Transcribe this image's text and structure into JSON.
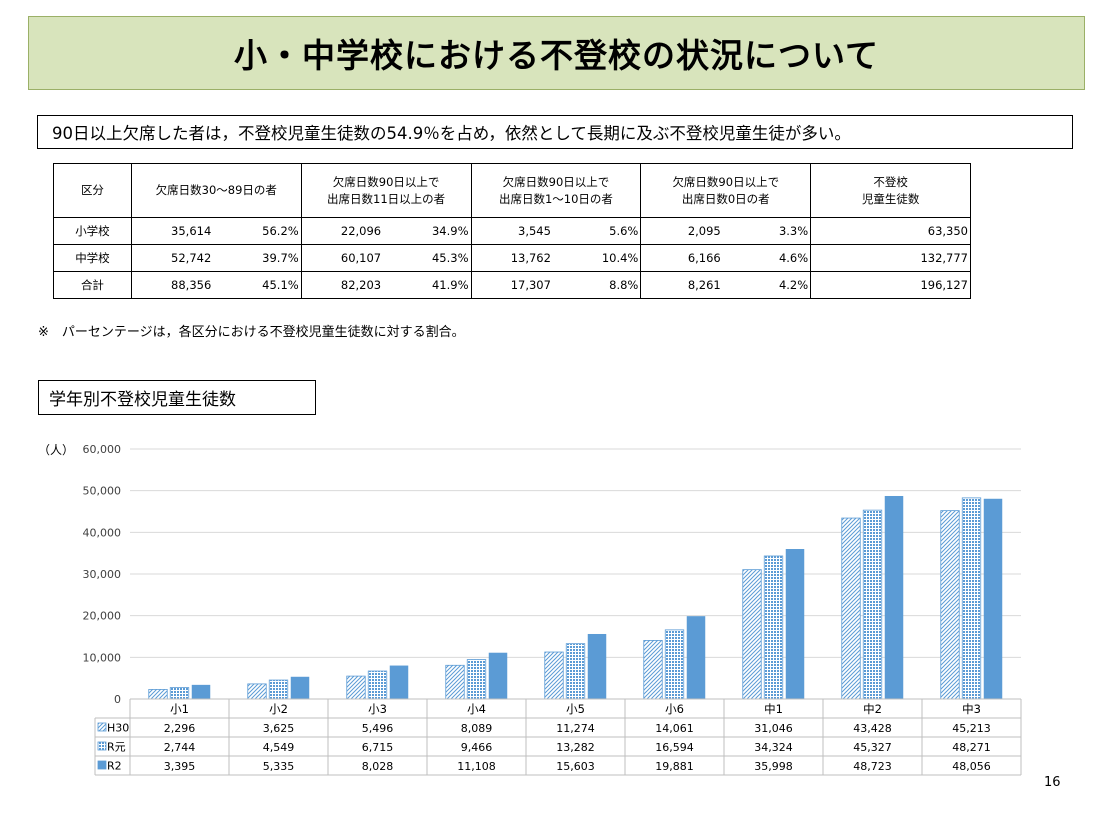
{
  "title": "小・中学校における不登校の状況について",
  "summary": "90日以上欠席した者は，不登校児童生徒数の54.9％を占め，依然として長期に及ぶ不登校児童生徒が多い。",
  "stats_table": {
    "headers": {
      "category": "区分",
      "col1": "欠席日数30～89日の者",
      "col2_line1": "欠席日数90日以上で",
      "col2_line2": "出席日数11日以上の者",
      "col3_line1": "欠席日数90日以上で",
      "col3_line2": "出席日数1～10日の者",
      "col4_line1": "欠席日数90日以上で",
      "col4_line2": "出席日数0日の者",
      "total_line1": "不登校",
      "total_line2": "児童生徒数"
    },
    "rows": [
      {
        "label": "小学校",
        "c1": "35,614",
        "p1": "56.2%",
        "c2": "22,096",
        "p2": "34.9%",
        "c3": "3,545",
        "p3": "5.6%",
        "c4": "2,095",
        "p4": "3.3%",
        "total": "63,350"
      },
      {
        "label": "中学校",
        "c1": "52,742",
        "p1": "39.7%",
        "c2": "60,107",
        "p2": "45.3%",
        "c3": "13,762",
        "p3": "10.4%",
        "c4": "6,166",
        "p4": "4.6%",
        "total": "132,777"
      },
      {
        "label": "合計",
        "c1": "88,356",
        "p1": "45.1%",
        "c2": "82,203",
        "p2": "41.9%",
        "c3": "17,307",
        "p3": "8.8%",
        "c4": "8,261",
        "p4": "4.2%",
        "total": "196,127"
      }
    ]
  },
  "note": "※　パーセンテージは，各区分における不登校児童生徒数に対する割合。",
  "subtitle": "学年別不登校児童生徒数",
  "page_number": "16",
  "colors": {
    "title_bg": "#d8e4bc",
    "bar_main": "#5b9bd5",
    "bar_border": "#41719c",
    "grid": "#d9d9d9"
  },
  "chart_data": {
    "type": "bar",
    "unit_label": "（人）",
    "categories": [
      "小1",
      "小2",
      "小3",
      "小4",
      "小5",
      "小6",
      "中1",
      "中2",
      "中3"
    ],
    "series": [
      {
        "name": "H30",
        "pattern": "diagonal",
        "values": [
          2296,
          3625,
          5496,
          8089,
          11274,
          14061,
          31046,
          43428,
          45213
        ]
      },
      {
        "name": "R元",
        "pattern": "dotted",
        "values": [
          2744,
          4549,
          6715,
          9466,
          13282,
          16594,
          34324,
          45327,
          48271
        ]
      },
      {
        "name": "R2",
        "pattern": "solid",
        "values": [
          3395,
          5335,
          8028,
          11108,
          15603,
          19881,
          35998,
          48723,
          48056
        ]
      }
    ],
    "ylim": [
      0,
      60000
    ],
    "yticks": [
      0,
      10000,
      20000,
      30000,
      40000,
      50000,
      60000
    ],
    "ytick_labels": [
      "0",
      "10,000",
      "20,000",
      "30,000",
      "40,000",
      "50,000",
      "60,000"
    ],
    "grid": true,
    "legend": "data-table"
  }
}
